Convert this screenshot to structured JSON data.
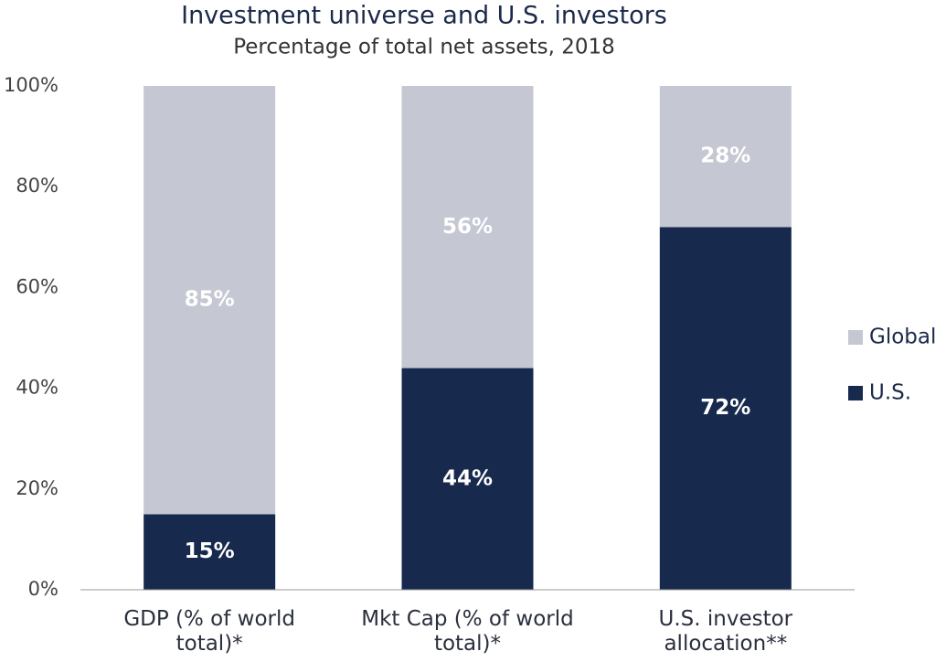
{
  "chart_data": {
    "type": "stacked_bar",
    "title": "Investment universe and U.S. investors",
    "subtitle": "Percentage of total net assets, 2018",
    "categories": [
      "GDP (% of world total)*",
      "Mkt Cap (% of world total)*",
      "U.S. investor allocation**"
    ],
    "series": [
      {
        "name": "U.S.",
        "color": "#172a4d",
        "values": [
          15,
          44,
          72
        ],
        "value_labels": [
          "15%",
          "44%",
          "72%"
        ]
      },
      {
        "name": "Global",
        "color": "#c5c7d2",
        "values": [
          85,
          56,
          28
        ],
        "value_labels": [
          "85%",
          "56%",
          "28%"
        ]
      }
    ],
    "ylim": [
      0,
      100
    ],
    "yticks": [
      {
        "value": 0,
        "label": "0%"
      },
      {
        "value": 20,
        "label": "20%"
      },
      {
        "value": 40,
        "label": "40%"
      },
      {
        "value": 60,
        "label": "60%"
      },
      {
        "value": 80,
        "label": "80%"
      },
      {
        "value": 100,
        "label": "100%"
      }
    ],
    "legend": "right"
  }
}
